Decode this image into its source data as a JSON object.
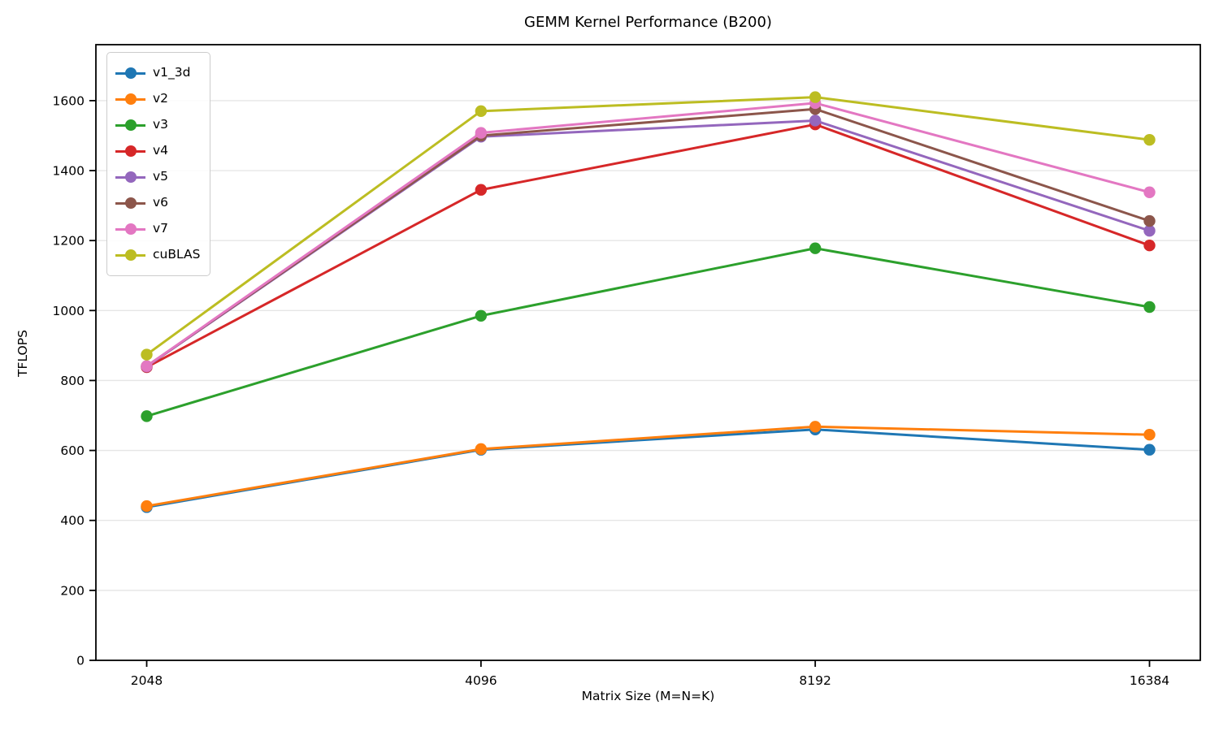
{
  "chart_data": {
    "type": "line",
    "title": "GEMM Kernel Performance (B200)",
    "xlabel": "Matrix Size (M=N=K)",
    "ylabel": "TFLOPS",
    "x_categories": [
      "2048",
      "4096",
      "8192",
      "16384"
    ],
    "yticks": [
      0,
      200,
      400,
      600,
      800,
      1000,
      1200,
      1400,
      1600
    ],
    "ylim": [
      0,
      1760
    ],
    "grid": "horizontal",
    "grid_color": "#e6e6e6",
    "axis_color": "#000000",
    "legend_position": "upper-left",
    "series": [
      {
        "name": "v1_3d",
        "color": "#1f77b4",
        "values": [
          438,
          602,
          660,
          602
        ]
      },
      {
        "name": "v2",
        "color": "#ff7f0e",
        "values": [
          441,
          604,
          668,
          645
        ]
      },
      {
        "name": "v3",
        "color": "#2ca02c",
        "values": [
          698,
          985,
          1178,
          1010
        ]
      },
      {
        "name": "v4",
        "color": "#d62728",
        "values": [
          838,
          1345,
          1532,
          1186
        ]
      },
      {
        "name": "v5",
        "color": "#9467bd",
        "values": [
          840,
          1497,
          1543,
          1228
        ]
      },
      {
        "name": "v6",
        "color": "#8c564b",
        "values": [
          841,
          1500,
          1576,
          1256
        ]
      },
      {
        "name": "v7",
        "color": "#e377c2",
        "values": [
          841,
          1508,
          1593,
          1338
        ]
      },
      {
        "name": "cuBLAS",
        "color": "#bcbd22",
        "values": [
          874,
          1570,
          1610,
          1488
        ]
      }
    ]
  }
}
